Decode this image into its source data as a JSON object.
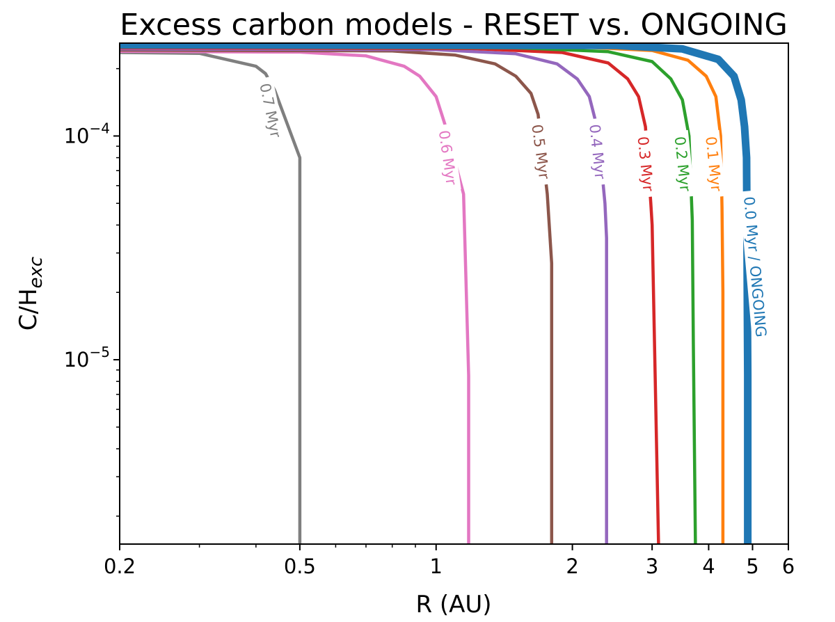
{
  "chart_data": {
    "type": "line",
    "title": "Excess carbon models - RESET vs. ONGOING",
    "xlabel": "R (AU)",
    "ylabel_main": "C/H",
    "ylabel_sub": "exc",
    "xscale": "log",
    "yscale": "log",
    "xlim": [
      0.2,
      6
    ],
    "ylim": [
      1.5e-06,
      0.00026
    ],
    "x_ticks": [
      {
        "value": 0.2,
        "label": "0.2"
      },
      {
        "value": 0.5,
        "label": "0.5"
      },
      {
        "value": 1,
        "label": "1"
      },
      {
        "value": 2,
        "label": "2"
      },
      {
        "value": 3,
        "label": "3"
      },
      {
        "value": 4,
        "label": "4"
      },
      {
        "value": 5,
        "label": "5"
      },
      {
        "value": 6,
        "label": "6"
      }
    ],
    "y_ticks": [
      {
        "value": 0.0001,
        "base": "10",
        "exp": "−4"
      },
      {
        "value": 1e-05,
        "base": "10",
        "exp": "−5"
      }
    ],
    "series": [
      {
        "name": "0.7 Myr",
        "color": "#7f7f7f",
        "x": [
          0.2,
          0.3,
          0.4,
          0.42,
          0.44,
          0.5,
          0.5
        ],
        "y": [
          0.000236,
          0.000234,
          0.000205,
          0.00019,
          0.00016,
          8e-05,
          1.5e-06
        ],
        "label_x": 0.43,
        "label_y": 0.00013,
        "label_angle": 78
      },
      {
        "name": "0.6 Myr",
        "color": "#e377c2",
        "x": [
          0.2,
          0.5,
          0.7,
          0.85,
          0.92,
          1.0,
          1.05,
          1.15,
          1.18,
          1.18
        ],
        "y": [
          0.000239,
          0.000237,
          0.000228,
          0.000205,
          0.000185,
          0.00015,
          0.00011,
          5.5e-05,
          8.5e-06,
          1.5e-06
        ],
        "label_x": 1.06,
        "label_y": 8e-05,
        "label_angle": 82
      },
      {
        "name": "0.5 Myr",
        "color": "#8c564b",
        "x": [
          0.2,
          0.8,
          1.1,
          1.35,
          1.5,
          1.62,
          1.68,
          1.76,
          1.8,
          1.8
        ],
        "y": [
          0.000242,
          0.00024,
          0.00023,
          0.00021,
          0.000185,
          0.000155,
          0.000125,
          5.5e-05,
          2.7e-05,
          1.5e-06
        ],
        "label_x": 1.7,
        "label_y": 8.5e-05,
        "label_angle": 82
      },
      {
        "name": "0.4 Myr",
        "color": "#9467bd",
        "x": [
          0.2,
          1.0,
          1.5,
          1.85,
          2.05,
          2.18,
          2.28,
          2.36,
          2.38,
          2.38
        ],
        "y": [
          0.000245,
          0.000243,
          0.000233,
          0.00021,
          0.00018,
          0.00015,
          0.000105,
          5e-05,
          3.5e-05,
          1.5e-06
        ],
        "label_x": 2.27,
        "label_y": 8.5e-05,
        "label_angle": 84
      },
      {
        "name": "0.3 Myr",
        "color": "#d62728",
        "x": [
          0.2,
          1.2,
          1.9,
          2.4,
          2.65,
          2.8,
          2.9,
          2.98,
          3.0,
          3.1
        ],
        "y": [
          0.000248,
          0.000246,
          0.000236,
          0.000212,
          0.00018,
          0.00015,
          0.00011,
          5e-05,
          4e-05,
          1.5e-06
        ],
        "label_x": 2.9,
        "label_y": 7.5e-05,
        "label_angle": 84
      },
      {
        "name": "0.2 Myr",
        "color": "#2ca02c",
        "x": [
          0.2,
          1.5,
          2.4,
          3.0,
          3.3,
          3.5,
          3.62,
          3.68,
          3.7,
          3.74
        ],
        "y": [
          0.00025,
          0.000248,
          0.000238,
          0.000215,
          0.00018,
          0.000145,
          0.0001,
          4.2e-05,
          1.2e-05,
          1.5e-06
        ],
        "label_x": 3.5,
        "label_y": 7.5e-05,
        "label_angle": 84
      },
      {
        "name": "0.1 Myr",
        "color": "#ff7f0e",
        "x": [
          0.2,
          2.0,
          3.0,
          3.6,
          3.95,
          4.15,
          4.25,
          4.28,
          4.3,
          4.3
        ],
        "y": [
          0.000253,
          0.000251,
          0.000241,
          0.000218,
          0.000185,
          0.00015,
          0.0001,
          4.8e-05,
          2e-05,
          1.5e-06
        ],
        "label_x": 4.1,
        "label_y": 7.5e-05,
        "label_angle": 84
      },
      {
        "name": "0.0 Myr / ONGOING",
        "color": "#1f77b4",
        "x": [
          0.2,
          2.5,
          3.5,
          4.2,
          4.55,
          4.72,
          4.8,
          4.85,
          4.88,
          4.88
        ],
        "y": [
          0.000256,
          0.000254,
          0.000245,
          0.00022,
          0.000185,
          0.000145,
          0.00011,
          8e-05,
          8.5e-06,
          1.5e-06
        ],
        "label_x": 5.06,
        "label_y": 2.6e-05,
        "label_angle": 85
      }
    ]
  }
}
